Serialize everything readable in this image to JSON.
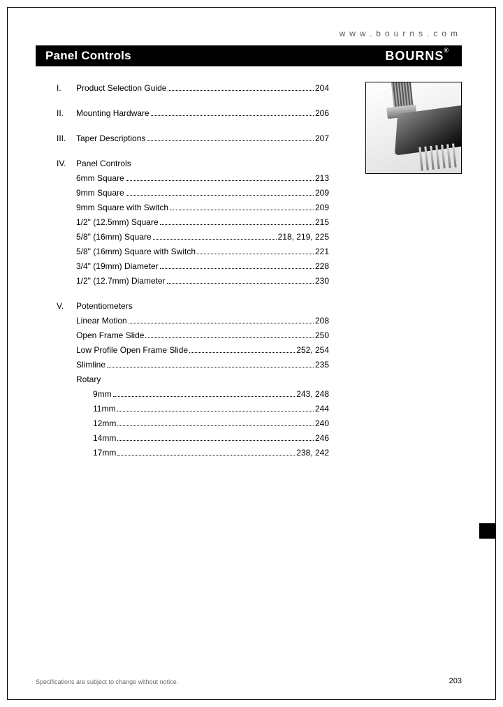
{
  "url": "www.bourns.com",
  "header": {
    "title": "Panel Controls",
    "brand": "BOURNS"
  },
  "footer": {
    "note": "Specifications are subject to change without notice.",
    "page": "203"
  },
  "toc": {
    "sections": [
      {
        "num": "I.",
        "label": "Product Selection Guide",
        "page": "204"
      },
      {
        "num": "II.",
        "label": "Mounting Hardware",
        "page": "206"
      },
      {
        "num": "III.",
        "label": "Taper Descriptions",
        "page": "207"
      },
      {
        "num": "IV.",
        "label": "Panel Controls",
        "items": [
          {
            "label": "6mm Square",
            "page": "213"
          },
          {
            "label": "9mm Square",
            "page": "209"
          },
          {
            "label": "9mm Square with Switch",
            "page": "209"
          },
          {
            "label": "1/2\" (12.5mm) Square",
            "page": "215"
          },
          {
            "label": "5/8\" (16mm) Square",
            "page": "218, 219, 225"
          },
          {
            "label": "5/8\" (16mm) Square with Switch",
            "page": "221"
          },
          {
            "label": "3/4\" (19mm) Diameter",
            "page": "228"
          },
          {
            "label": "1/2\" (12.7mm) Diameter",
            "page": "230"
          }
        ]
      },
      {
        "num": "V.",
        "label": "Potentiometers",
        "items": [
          {
            "label": "Linear Motion",
            "page": "208"
          },
          {
            "label": "Open Frame Slide",
            "page": "250"
          },
          {
            "label": "Low Profile Open Frame Slide",
            "page": "252, 254"
          },
          {
            "label": "Slimline",
            "page": "235"
          },
          {
            "label": "Rotary",
            "items": [
              {
                "label": "9mm",
                "page": "243, 248"
              },
              {
                "label": "11mm",
                "page": "244"
              },
              {
                "label": "12mm",
                "page": "240"
              },
              {
                "label": "14mm",
                "page": "246"
              },
              {
                "label": "17mm",
                "page": "238, 242"
              }
            ]
          }
        ]
      }
    ]
  }
}
